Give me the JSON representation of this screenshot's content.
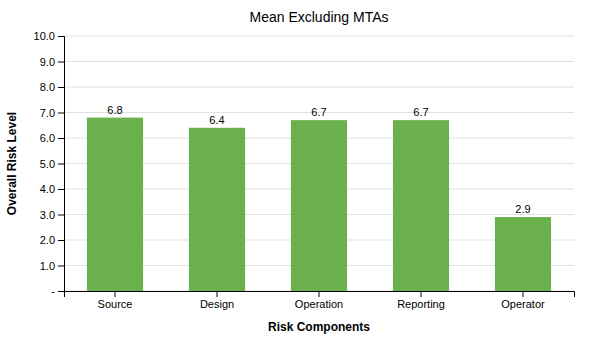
{
  "chart_data": {
    "type": "bar",
    "title": "Mean Excluding MTAs",
    "xlabel": "Risk Components",
    "ylabel": "Overall Risk Level",
    "categories": [
      "Source",
      "Design",
      "Operation",
      "Reporting",
      "Operator"
    ],
    "values": [
      6.8,
      6.4,
      6.7,
      6.7,
      2.9
    ],
    "color": "#6ab04c",
    "ylim": [
      0,
      10.0
    ],
    "yticks": [
      {
        "value": 0.0,
        "label": "-"
      },
      {
        "value": 1.0,
        "label": "1.0"
      },
      {
        "value": 2.0,
        "label": "2.0"
      },
      {
        "value": 3.0,
        "label": "3.0"
      },
      {
        "value": 4.0,
        "label": "4.0"
      },
      {
        "value": 5.0,
        "label": "5.0"
      },
      {
        "value": 6.0,
        "label": "6.0"
      },
      {
        "value": 7.0,
        "label": "7.0"
      },
      {
        "value": 8.0,
        "label": "8.0"
      },
      {
        "value": 9.0,
        "label": "9.0"
      },
      {
        "value": 10.0,
        "label": "10.0"
      }
    ],
    "grid": true,
    "data_labels": true
  }
}
